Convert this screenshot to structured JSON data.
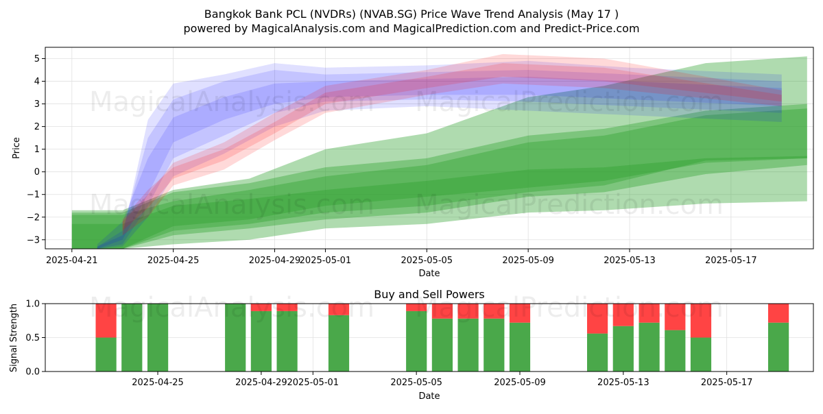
{
  "title": "Bangkok Bank PCL (NVDRs) (NVAB.SG) Price Wave Trend Analysis (May 17 )",
  "subtitle": "powered by MagicalAnalysis.com and MagicalPrediction.com and Predict-Price.com",
  "watermarks": [
    "MagicalAnalysis.com",
    "MagicalPrediction.com"
  ],
  "colors": {
    "green": "#2ca02c",
    "blue": "#0000ff",
    "red": "#ff0000",
    "buy": "#4aa84a",
    "sell": "#ff4444",
    "grid": "#e0e0e0"
  },
  "chart_data": [
    {
      "type": "area",
      "title": "",
      "xlabel": "Date",
      "ylabel": "Price",
      "xlim": [
        "2025-04-20",
        "2025-05-20"
      ],
      "ylim": [
        -3.4,
        5.5
      ],
      "grid": true,
      "x_ticks": [
        "2025-04-21",
        "2025-04-25",
        "2025-04-29",
        "2025-05-01",
        "2025-05-05",
        "2025-05-09",
        "2025-05-13",
        "2025-05-17"
      ],
      "y_ticks": [
        -3,
        -2,
        -1,
        0,
        1,
        2,
        3,
        4,
        5
      ],
      "green_bands": [
        {
          "x": [
            "2025-04-21",
            "2025-04-23",
            "2025-04-25",
            "2025-04-28",
            "2025-05-01",
            "2025-05-05",
            "2025-05-09",
            "2025-05-12",
            "2025-05-16",
            "2025-05-20"
          ],
          "upper": [
            -1.7,
            -1.7,
            -0.8,
            -0.3,
            1.0,
            1.7,
            3.3,
            3.8,
            4.8,
            5.1
          ],
          "lower": [
            -3.4,
            -3.4,
            -3.2,
            -3.0,
            -2.5,
            -2.3,
            -1.8,
            -1.7,
            -1.4,
            -1.3
          ]
        },
        {
          "x": [
            "2025-04-21",
            "2025-04-23",
            "2025-04-25",
            "2025-04-28",
            "2025-05-01",
            "2025-05-05",
            "2025-05-09",
            "2025-05-12",
            "2025-05-16",
            "2025-05-20"
          ],
          "upper": [
            -1.9,
            -1.9,
            -1.3,
            -0.8,
            -0.2,
            0.3,
            1.3,
            1.6,
            2.5,
            2.8
          ],
          "lower": [
            -3.4,
            -3.4,
            -2.8,
            -2.5,
            -2.1,
            -1.8,
            -1.1,
            -0.9,
            -0.1,
            0.3
          ]
        },
        {
          "x": [
            "2025-04-21",
            "2025-04-23",
            "2025-04-25",
            "2025-04-28",
            "2025-05-01",
            "2025-05-05",
            "2025-05-09",
            "2025-05-12",
            "2025-05-16",
            "2025-05-20"
          ],
          "upper": [
            -2.3,
            -2.3,
            -1.5,
            -1.2,
            -0.8,
            -0.4,
            0.1,
            0.2,
            0.6,
            0.7
          ],
          "lower": [
            -3.4,
            -3.4,
            -2.4,
            -2.1,
            -1.5,
            -1.1,
            -0.7,
            -0.4,
            0.4,
            0.6
          ]
        },
        {
          "x": [
            "2025-04-21",
            "2025-04-23",
            "2025-04-25",
            "2025-04-28",
            "2025-05-01",
            "2025-05-05",
            "2025-05-09",
            "2025-05-12",
            "2025-05-16",
            "2025-05-20"
          ],
          "upper": [
            -1.8,
            -1.8,
            -0.9,
            -0.5,
            0.2,
            0.6,
            1.6,
            1.9,
            2.7,
            3.0
          ],
          "lower": [
            -3.4,
            -3.4,
            -2.6,
            -2.3,
            -1.8,
            -1.5,
            -0.9,
            -0.6,
            0.5,
            0.6
          ]
        }
      ],
      "blue_bands": [
        {
          "x": [
            "2025-04-22",
            "2025-04-23",
            "2025-04-24",
            "2025-04-25",
            "2025-04-27",
            "2025-04-29",
            "2025-05-01",
            "2025-05-05",
            "2025-05-09",
            "2025-05-13",
            "2025-05-19"
          ],
          "upper": [
            -3.3,
            -2.8,
            2.3,
            3.9,
            4.3,
            4.8,
            4.6,
            4.7,
            4.9,
            4.6,
            4.3
          ],
          "lower": [
            -3.4,
            -3.3,
            -2.0,
            -0.2,
            0.8,
            2.0,
            2.7,
            2.9,
            2.7,
            2.5,
            2.2
          ]
        },
        {
          "x": [
            "2025-04-22",
            "2025-04-23",
            "2025-04-24",
            "2025-04-25",
            "2025-04-27",
            "2025-04-29",
            "2025-05-01",
            "2025-05-05",
            "2025-05-09",
            "2025-05-13",
            "2025-05-19"
          ],
          "upper": [
            -3.3,
            -2.6,
            1.5,
            3.2,
            4.0,
            4.5,
            4.3,
            4.4,
            4.5,
            4.3,
            4.0
          ],
          "lower": [
            -3.4,
            -3.2,
            -1.5,
            0.6,
            1.6,
            2.6,
            3.1,
            3.2,
            3.1,
            2.9,
            2.6
          ]
        },
        {
          "x": [
            "2025-04-22",
            "2025-04-23",
            "2025-04-24",
            "2025-04-25",
            "2025-04-27",
            "2025-04-29",
            "2025-05-01",
            "2025-05-05",
            "2025-05-09",
            "2025-05-13",
            "2025-05-19"
          ],
          "upper": [
            -3.2,
            -2.2,
            0.6,
            2.4,
            3.3,
            3.9,
            4.0,
            4.1,
            4.2,
            4.0,
            3.7
          ],
          "lower": [
            -3.4,
            -3.0,
            -1.0,
            1.3,
            2.3,
            3.0,
            3.3,
            3.4,
            3.4,
            3.2,
            2.9
          ]
        }
      ],
      "red_bands": [
        {
          "x": [
            "2025-04-23",
            "2025-04-24",
            "2025-04-25",
            "2025-04-27",
            "2025-04-29",
            "2025-05-01",
            "2025-05-05",
            "2025-05-08",
            "2025-05-12",
            "2025-05-19"
          ],
          "upper": [
            -2.2,
            -1.0,
            0.4,
            1.3,
            2.6,
            3.8,
            4.5,
            5.2,
            5.0,
            3.6
          ],
          "lower": [
            -2.8,
            -2.0,
            -0.6,
            0.1,
            1.4,
            2.6,
            3.4,
            3.9,
            3.7,
            2.9
          ]
        },
        {
          "x": [
            "2025-04-23",
            "2025-04-24",
            "2025-04-25",
            "2025-04-27",
            "2025-04-29",
            "2025-05-01",
            "2025-05-05",
            "2025-05-08",
            "2025-05-12",
            "2025-05-19"
          ],
          "upper": [
            -2.1,
            -0.8,
            0.2,
            1.0,
            2.2,
            3.5,
            4.2,
            4.8,
            4.6,
            3.4
          ],
          "lower": [
            -2.6,
            -1.6,
            -0.3,
            0.5,
            1.7,
            3.0,
            3.7,
            4.2,
            4.0,
            3.1
          ]
        }
      ]
    },
    {
      "type": "bar",
      "title": "Buy and Sell Powers",
      "xlabel": "Date",
      "ylabel": "Signal Strength",
      "ylim": [
        0,
        1
      ],
      "grid": true,
      "x_ticks": [
        "2025-04-25",
        "2025-04-29",
        "2025-05-01",
        "2025-05-05",
        "2025-05-09",
        "2025-05-13",
        "2025-05-17"
      ],
      "y_ticks": [
        "0.0",
        "0.5",
        "1.0"
      ],
      "series": [
        {
          "name": "buy",
          "x": [
            "2025-04-23",
            "2025-04-24",
            "2025-04-25",
            "2025-04-28",
            "2025-04-29",
            "2025-04-30",
            "2025-05-02",
            "2025-05-05",
            "2025-05-06",
            "2025-05-07",
            "2025-05-08",
            "2025-05-09",
            "2025-05-12",
            "2025-05-13",
            "2025-05-14",
            "2025-05-15",
            "2025-05-16",
            "2025-05-19"
          ],
          "values": [
            0.5,
            1.0,
            1.0,
            1.0,
            0.89,
            0.89,
            0.83,
            0.89,
            0.78,
            0.78,
            0.78,
            0.72,
            0.56,
            0.67,
            0.72,
            0.61,
            0.5,
            0.72
          ]
        },
        {
          "name": "sell",
          "x": [
            "2025-04-23",
            "2025-04-24",
            "2025-04-25",
            "2025-04-28",
            "2025-04-29",
            "2025-04-30",
            "2025-05-02",
            "2025-05-05",
            "2025-05-06",
            "2025-05-07",
            "2025-05-08",
            "2025-05-09",
            "2025-05-12",
            "2025-05-13",
            "2025-05-14",
            "2025-05-15",
            "2025-05-16",
            "2025-05-19"
          ],
          "values": [
            0.5,
            0.0,
            0.0,
            0.0,
            0.11,
            0.11,
            0.17,
            0.11,
            0.22,
            0.22,
            0.22,
            0.28,
            0.44,
            0.33,
            0.28,
            0.39,
            0.5,
            0.28
          ]
        }
      ]
    }
  ]
}
